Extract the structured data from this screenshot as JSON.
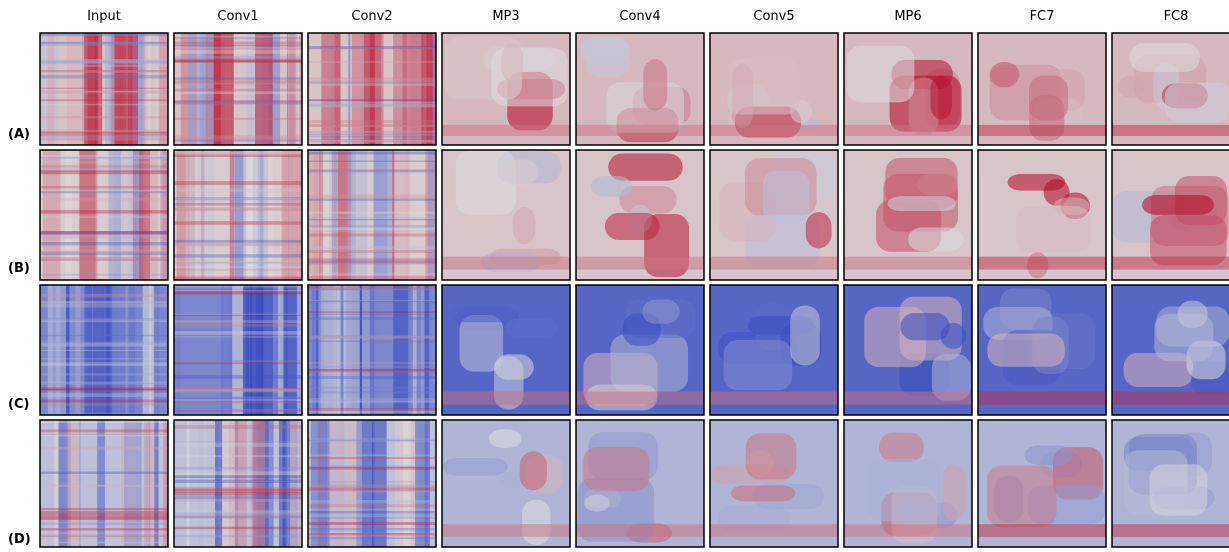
{
  "columns": [
    "Input",
    "Conv1",
    "Conv2",
    "MP3",
    "Conv4",
    "Conv5",
    "MP6",
    "FC7",
    "FC8"
  ],
  "rows": [
    "(A)",
    "(B)",
    "(C)",
    "(D)"
  ]
}
